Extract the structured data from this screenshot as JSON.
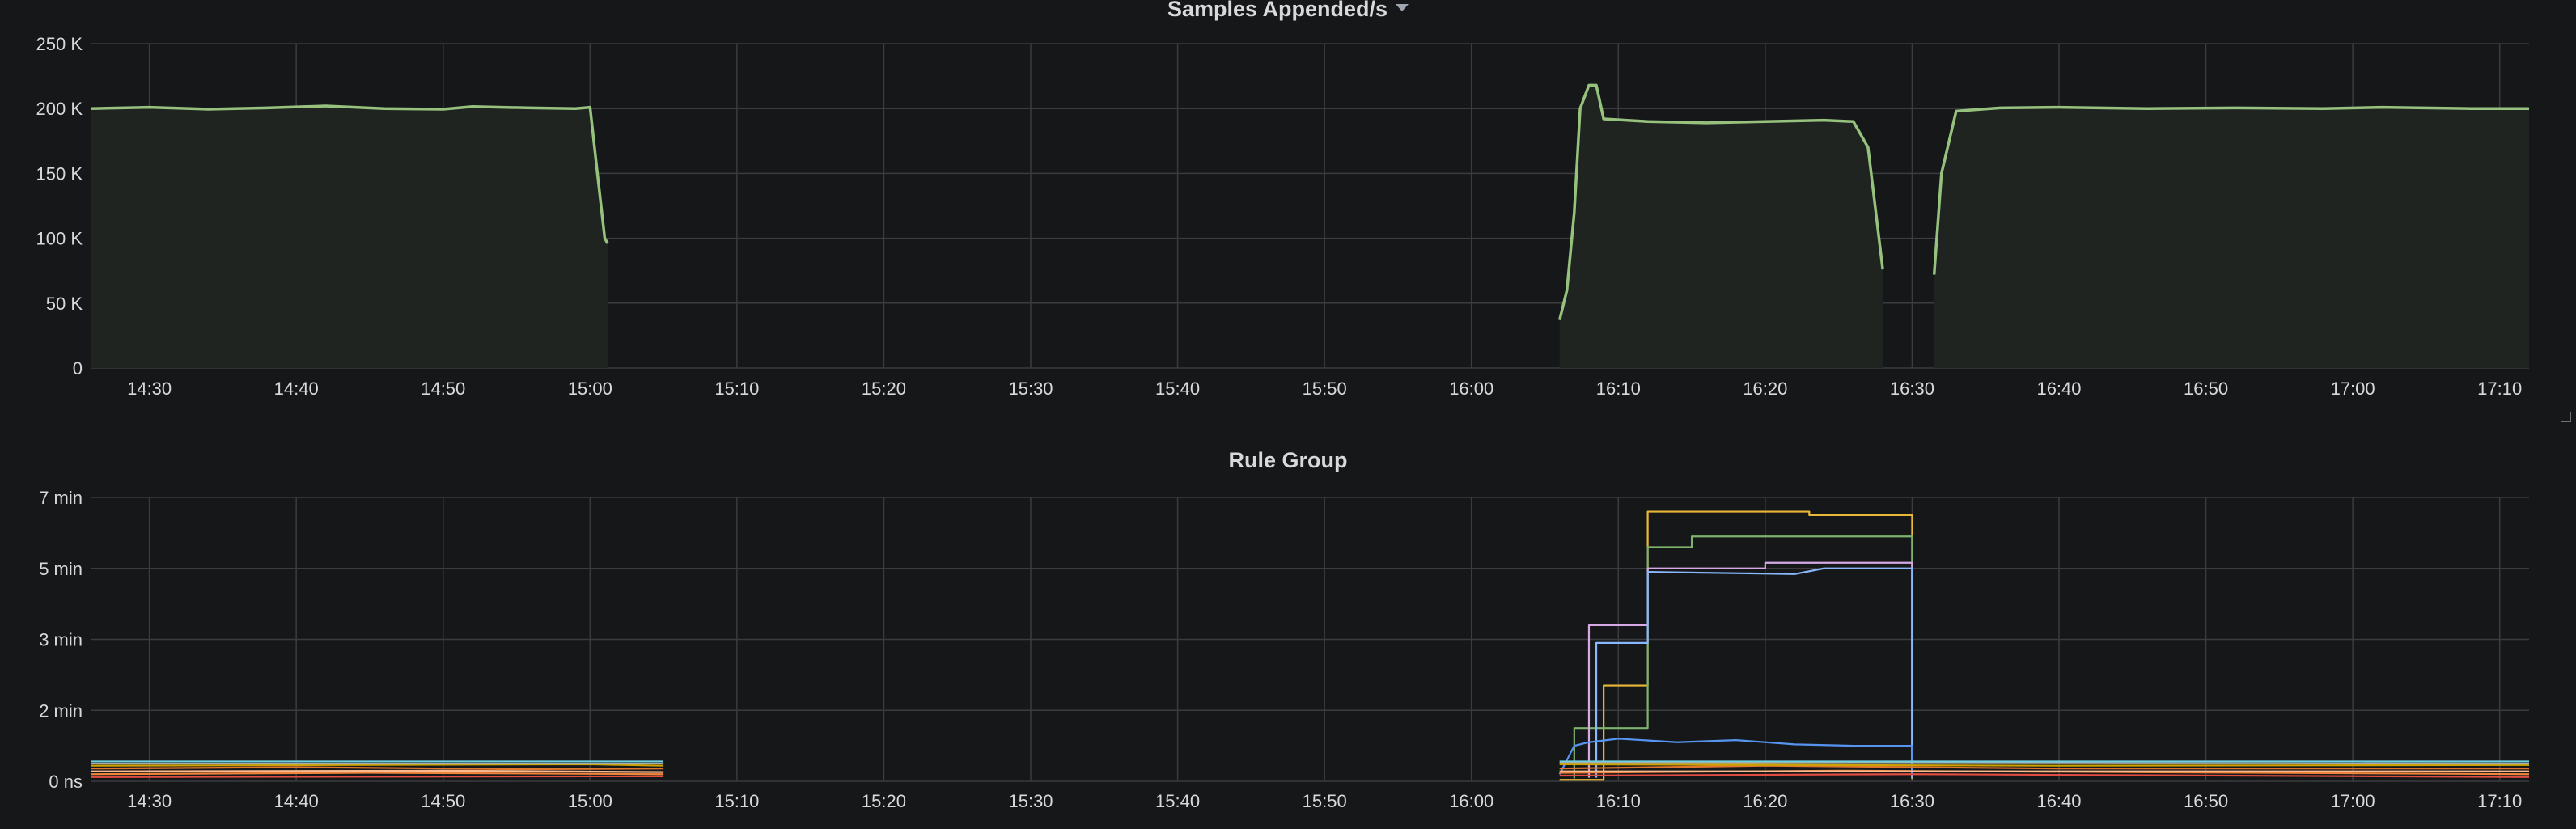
{
  "chart_data": [
    {
      "type": "area",
      "title": "Samples Appended/s",
      "ylim": [
        0,
        250000
      ],
      "y_ticks": [
        {
          "v": 0,
          "label": "0"
        },
        {
          "v": 50000,
          "label": "50 K"
        },
        {
          "v": 100000,
          "label": "100 K"
        },
        {
          "v": 150000,
          "label": "150 K"
        },
        {
          "v": 200000,
          "label": "200 K"
        },
        {
          "v": 250000,
          "label": "250 K"
        }
      ],
      "x_start": "14:26",
      "x_end": "17:12",
      "x_ticks": [
        "14:30",
        "14:40",
        "14:50",
        "15:00",
        "15:10",
        "15:20",
        "15:30",
        "15:40",
        "15:50",
        "16:00",
        "16:10",
        "16:20",
        "16:30",
        "16:40",
        "16:50",
        "17:00",
        "17:10"
      ],
      "grid": true,
      "series": [
        {
          "color": "#96c27e",
          "segments": [
            [
              [
                "14:26",
                200000
              ],
              [
                "14:30",
                201000
              ],
              [
                "14:34",
                199500
              ],
              [
                "14:38",
                200500
              ],
              [
                "14:42",
                202000
              ],
              [
                "14:46",
                200000
              ],
              [
                "14:50",
                199500
              ],
              [
                "14:52",
                201500
              ],
              [
                "14:56",
                200500
              ],
              [
                "14:59",
                200000
              ],
              [
                "15:00",
                201000
              ],
              [
                "15:00.5",
                150000
              ],
              [
                "15:01",
                100000
              ],
              [
                "15:01.2",
                96000
              ]
            ],
            [
              [
                "16:06",
                37000
              ],
              [
                "16:06.5",
                60000
              ],
              [
                "16:07",
                120000
              ],
              [
                "16:07.4",
                200000
              ],
              [
                "16:08",
                218000
              ],
              [
                "16:08.5",
                218000
              ],
              [
                "16:09",
                192000
              ],
              [
                "16:12",
                190000
              ],
              [
                "16:16",
                189000
              ],
              [
                "16:20",
                190000
              ],
              [
                "16:24",
                191000
              ],
              [
                "16:26",
                190000
              ],
              [
                "16:27",
                170000
              ],
              [
                "16:28",
                76000
              ]
            ],
            [
              [
                "16:31.5",
                72000
              ],
              [
                "16:32",
                150000
              ],
              [
                "16:33",
                198000
              ],
              [
                "16:36",
                200500
              ],
              [
                "16:40",
                201000
              ],
              [
                "16:46",
                200000
              ],
              [
                "16:52",
                200500
              ],
              [
                "16:58",
                200000
              ],
              [
                "17:02",
                201000
              ],
              [
                "17:08",
                200000
              ],
              [
                "17:12",
                200000
              ]
            ]
          ]
        }
      ]
    },
    {
      "type": "line",
      "title": "Rule Group",
      "y_ticks": [
        {
          "v": 0,
          "label": "0 ns"
        },
        {
          "v": 1,
          "label": "2 min"
        },
        {
          "v": 2,
          "label": "3 min"
        },
        {
          "v": 3,
          "label": "5 min"
        },
        {
          "v": 4,
          "label": "7 min"
        }
      ],
      "ylim": [
        0,
        4
      ],
      "x_start": "14:26",
      "x_end": "17:12",
      "x_ticks": [
        "14:30",
        "14:40",
        "14:50",
        "15:00",
        "15:10",
        "15:20",
        "15:30",
        "15:40",
        "15:50",
        "16:00",
        "16:10",
        "16:20",
        "16:30",
        "16:40",
        "16:50",
        "17:00",
        "17:10"
      ],
      "grid": true,
      "series": [
        {
          "color": "#eab839",
          "segments": [
            [
              [
                "16:06",
                0.02
              ],
              [
                "16:09",
                0.02
              ],
              [
                "16:09",
                1.35
              ],
              [
                "16:11",
                1.35
              ],
              [
                "16:12",
                1.35
              ],
              [
                "16:12",
                3.8
              ],
              [
                "16:23",
                3.8
              ],
              [
                "16:23",
                3.75
              ],
              [
                "16:30",
                3.75
              ],
              [
                "16:30",
                0.03
              ]
            ]
          ]
        },
        {
          "color": "#7eb26d",
          "segments": [
            [
              [
                "16:07",
                0.04
              ],
              [
                "16:07",
                0.75
              ],
              [
                "16:12",
                0.75
              ],
              [
                "16:12",
                3.3
              ],
              [
                "16:15",
                3.3
              ],
              [
                "16:15",
                3.45
              ],
              [
                "16:30",
                3.45
              ],
              [
                "16:30",
                0.04
              ]
            ]
          ]
        },
        {
          "color": "#d6a8e6",
          "segments": [
            [
              [
                "16:08",
                0.05
              ],
              [
                "16:08",
                2.2
              ],
              [
                "16:10",
                2.2
              ],
              [
                "16:10",
                2.2
              ],
              [
                "16:12",
                2.2
              ],
              [
                "16:12",
                3.0
              ],
              [
                "16:20",
                3.0
              ],
              [
                "16:20",
                3.08
              ],
              [
                "16:30",
                3.08
              ],
              [
                "16:30",
                0.05
              ]
            ]
          ]
        },
        {
          "color": "#8ab8ff",
          "segments": [
            [
              [
                "16:08.5",
                0.05
              ],
              [
                "16:08.5",
                1.95
              ],
              [
                "16:12",
                1.95
              ],
              [
                "16:12",
                2.95
              ],
              [
                "16:22",
                2.92
              ],
              [
                "16:24",
                3.0
              ],
              [
                "16:30",
                3.0
              ],
              [
                "16:30",
                0.05
              ]
            ]
          ]
        },
        {
          "color": "#5794f2",
          "segments": [
            [
              [
                "16:06",
                0.1
              ],
              [
                "16:07",
                0.5
              ],
              [
                "16:08",
                0.55
              ],
              [
                "16:10",
                0.6
              ],
              [
                "16:14",
                0.55
              ],
              [
                "16:18",
                0.58
              ],
              [
                "16:22",
                0.52
              ],
              [
                "16:26",
                0.5
              ],
              [
                "16:30",
                0.5
              ],
              [
                "16:30",
                0.1
              ]
            ]
          ]
        },
        {
          "color": "#6ed0e0",
          "segments": [
            [
              [
                "14:26",
                0.28
              ],
              [
                "15:05",
                0.28
              ]
            ],
            [
              [
                "16:06",
                0.28
              ],
              [
                "17:12",
                0.28
              ]
            ]
          ]
        },
        {
          "color": "#e0752d",
          "segments": [
            [
              [
                "14:26",
                0.18
              ],
              [
                "14:40",
                0.2
              ],
              [
                "14:55",
                0.17
              ],
              [
                "15:05",
                0.18
              ]
            ],
            [
              [
                "16:06",
                0.18
              ],
              [
                "16:20",
                0.22
              ],
              [
                "16:30",
                0.2
              ],
              [
                "16:40",
                0.18
              ],
              [
                "17:12",
                0.18
              ]
            ]
          ]
        },
        {
          "color": "#ef843c",
          "segments": [
            [
              [
                "14:26",
                0.1
              ],
              [
                "14:45",
                0.12
              ],
              [
                "15:05",
                0.1
              ]
            ],
            [
              [
                "16:06",
                0.12
              ],
              [
                "16:25",
                0.15
              ],
              [
                "17:12",
                0.1
              ]
            ]
          ]
        },
        {
          "color": "#e24d42",
          "segments": [
            [
              [
                "14:26",
                0.06
              ],
              [
                "15:05",
                0.07
              ]
            ],
            [
              [
                "16:06",
                0.08
              ],
              [
                "16:30",
                0.1
              ],
              [
                "17:12",
                0.06
              ]
            ]
          ]
        },
        {
          "color": "#f9ba8f",
          "segments": [
            [
              [
                "14:26",
                0.14
              ],
              [
                "14:50",
                0.15
              ],
              [
                "15:05",
                0.13
              ]
            ],
            [
              [
                "16:06",
                0.14
              ],
              [
                "17:12",
                0.14
              ]
            ]
          ]
        },
        {
          "color": "#cca300",
          "segments": [
            [
              [
                "14:26",
                0.22
              ],
              [
                "15:00",
                0.24
              ],
              [
                "15:05",
                0.22
              ]
            ],
            [
              [
                "16:06",
                0.24
              ],
              [
                "16:40",
                0.22
              ],
              [
                "17:12",
                0.23
              ]
            ]
          ]
        },
        {
          "color": "#aaaaaa",
          "segments": [
            [
              [
                "14:26",
                0.25
              ],
              [
                "15:05",
                0.25
              ]
            ],
            [
              [
                "16:06",
                0.26
              ],
              [
                "17:12",
                0.25
              ]
            ]
          ]
        }
      ]
    }
  ]
}
